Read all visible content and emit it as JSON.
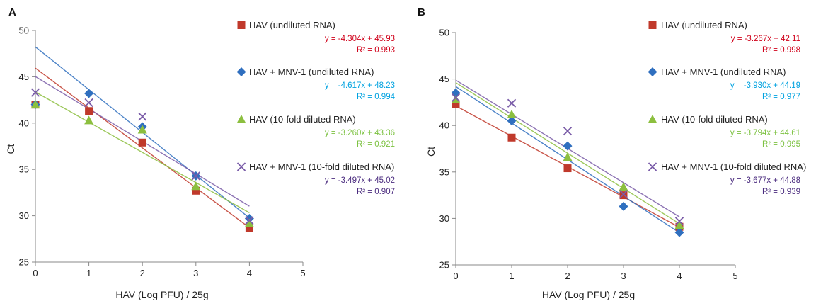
{
  "chart_data": [
    {
      "panel": "A",
      "type": "scatter",
      "xlabel": "HAV (Log PFU) / 25g",
      "ylabel": "Ct",
      "xlim": [
        0,
        5
      ],
      "ylim": [
        25,
        50
      ],
      "xticks": [
        0,
        1,
        2,
        3,
        4,
        5
      ],
      "yticks": [
        25,
        30,
        35,
        40,
        45,
        50
      ],
      "grid": false,
      "legend_position": "right",
      "series": [
        {
          "name": "HAV (undiluted RNA)",
          "marker": "square",
          "color": "#c0392b",
          "x": [
            0,
            1,
            2,
            3,
            4
          ],
          "y": [
            42.0,
            41.3,
            37.9,
            32.7,
            28.7
          ],
          "trendline": {
            "slope": -4.304,
            "intercept": 45.93
          },
          "equation": "y = -4.304x + 45.93",
          "r2": "R² = 0.993",
          "eq_color": "#d0021b"
        },
        {
          "name": "HAV + MNV-1 (undiluted RNA)",
          "marker": "diamond",
          "color": "#2f6fbf",
          "x": [
            0,
            1,
            2,
            3,
            4
          ],
          "y": [
            42.0,
            43.2,
            39.6,
            34.3,
            29.7
          ],
          "trendline": {
            "slope": -4.617,
            "intercept": 48.23
          },
          "equation": "y = -4.617x + 48.23",
          "r2": "R² = 0.994",
          "eq_color": "#00a2e0"
        },
        {
          "name": "HAV (10-fold diluted RNA)",
          "marker": "triangle",
          "color": "#8cbf3f",
          "x": [
            0,
            1,
            2,
            3,
            4
          ],
          "y": [
            42.0,
            40.3,
            39.3,
            33.2,
            29.2
          ],
          "trendline": {
            "slope": -3.26,
            "intercept": 43.36
          },
          "equation": "y = -3.260x + 43.36",
          "r2": "R² = 0.921",
          "eq_color": "#7dc242"
        },
        {
          "name": "HAV + MNV-1 (10-fold diluted RNA)",
          "marker": "x",
          "color": "#7a5ca8",
          "x": [
            0,
            1,
            2,
            3,
            4
          ],
          "y": [
            43.3,
            42.2,
            40.7,
            34.3,
            29.5
          ],
          "trendline": {
            "slope": -3.497,
            "intercept": 45.02
          },
          "equation": "y = -3.497x + 45.02",
          "r2": "R² = 0.907",
          "eq_color": "#4b2c7f"
        }
      ]
    },
    {
      "panel": "B",
      "type": "scatter",
      "xlabel": "HAV (Log PFU) / 25g",
      "ylabel": "Ct",
      "xlim": [
        0,
        5
      ],
      "ylim": [
        25,
        50
      ],
      "xticks": [
        0,
        1,
        2,
        3,
        4,
        5
      ],
      "yticks": [
        25,
        30,
        35,
        40,
        45,
        50
      ],
      "grid": false,
      "legend_position": "right",
      "series": [
        {
          "name": "HAV (undiluted RNA)",
          "marker": "square",
          "color": "#c0392b",
          "x": [
            0,
            1,
            2,
            3,
            4
          ],
          "y": [
            42.3,
            38.7,
            35.4,
            32.5,
            29.1
          ],
          "trendline": {
            "slope": -3.267,
            "intercept": 42.11
          },
          "equation": "y = -3.267x + 42.11",
          "r2": "R² = 0.998",
          "eq_color": "#d0021b"
        },
        {
          "name": "HAV + MNV-1 (undiluted RNA)",
          "marker": "diamond",
          "color": "#2f6fbf",
          "x": [
            0,
            1,
            2,
            3,
            4
          ],
          "y": [
            43.5,
            40.5,
            37.8,
            31.3,
            28.5
          ],
          "trendline": {
            "slope": -3.93,
            "intercept": 44.19
          },
          "equation": "y = -3.930x + 44.19",
          "r2": "R² = 0.977",
          "eq_color": "#00a2e0"
        },
        {
          "name": "HAV (10-fold diluted RNA)",
          "marker": "triangle",
          "color": "#8cbf3f",
          "x": [
            0,
            1,
            2,
            3,
            4
          ],
          "y": [
            42.8,
            41.2,
            36.6,
            33.4,
            29.3
          ],
          "trendline": {
            "slope": -3.794,
            "intercept": 44.61
          },
          "equation": "y = -3.794x + 44.61",
          "r2": "R² = 0.995",
          "eq_color": "#7dc242"
        },
        {
          "name": "HAV + MNV-1 (10-fold diluted RNA)",
          "marker": "x",
          "color": "#7a5ca8",
          "x": [
            0,
            1,
            2,
            3,
            4
          ],
          "y": [
            43.0,
            42.4,
            39.4,
            32.6,
            29.7
          ],
          "trendline": {
            "slope": -3.677,
            "intercept": 44.88
          },
          "equation": "y = -3.677x + 44.88",
          "r2": "R² = 0.939",
          "eq_color": "#4b2c7f"
        }
      ]
    }
  ]
}
